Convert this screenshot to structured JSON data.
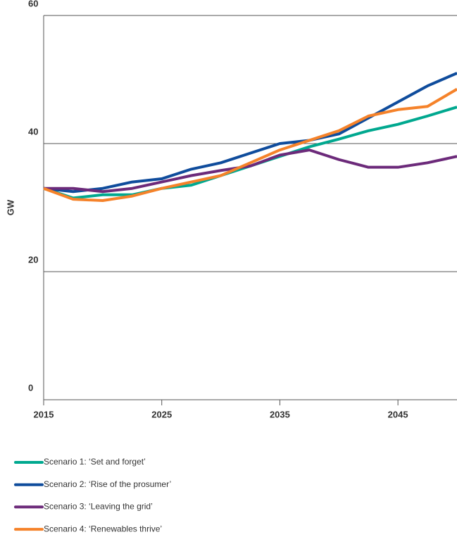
{
  "chart_data": {
    "type": "line",
    "y_label": "GW",
    "x": [
      2015,
      2017.5,
      2020,
      2022.5,
      2025,
      2027.5,
      2030,
      2032.5,
      2035,
      2037.5,
      2040,
      2042.5,
      2045,
      2047.5,
      2050
    ],
    "series": [
      {
        "name": "Scenario 1: ‘Set and forget’",
        "color": "#00a88f",
        "values": [
          33,
          31.5,
          32,
          32,
          33,
          33.5,
          35,
          36.5,
          38,
          39.5,
          40.7,
          42,
          43,
          44.3,
          45.7
        ]
      },
      {
        "name": "Scenario 2: ‘Rise of the prosumer’",
        "color": "#0f4c9c",
        "values": [
          33,
          32.5,
          33,
          34,
          34.5,
          36,
          37,
          38.5,
          40,
          40.5,
          41.5,
          44,
          46.5,
          49,
          51
        ]
      },
      {
        "name": "Scenario 3: ‘Leaving the grid’",
        "color": "#6c2a7a",
        "values": [
          33,
          33,
          32.5,
          33,
          34,
          35,
          35.8,
          36.5,
          38.2,
          39,
          37.5,
          36.3,
          36.3,
          37,
          38
        ]
      },
      {
        "name": "Scenario 4: ‘Renewables thrive’",
        "color": "#f5822a",
        "values": [
          33,
          31.3,
          31.1,
          31.8,
          33,
          34,
          35,
          37,
          39,
          40.5,
          42,
          44.3,
          45.3,
          45.8,
          48.5
        ]
      }
    ],
    "xlim": [
      2015,
      2050
    ],
    "xticks": [
      2015,
      2025,
      2035,
      2045
    ],
    "ylim": [
      0,
      60
    ],
    "yticks": [
      0,
      20,
      40,
      60
    ],
    "grid": true
  }
}
